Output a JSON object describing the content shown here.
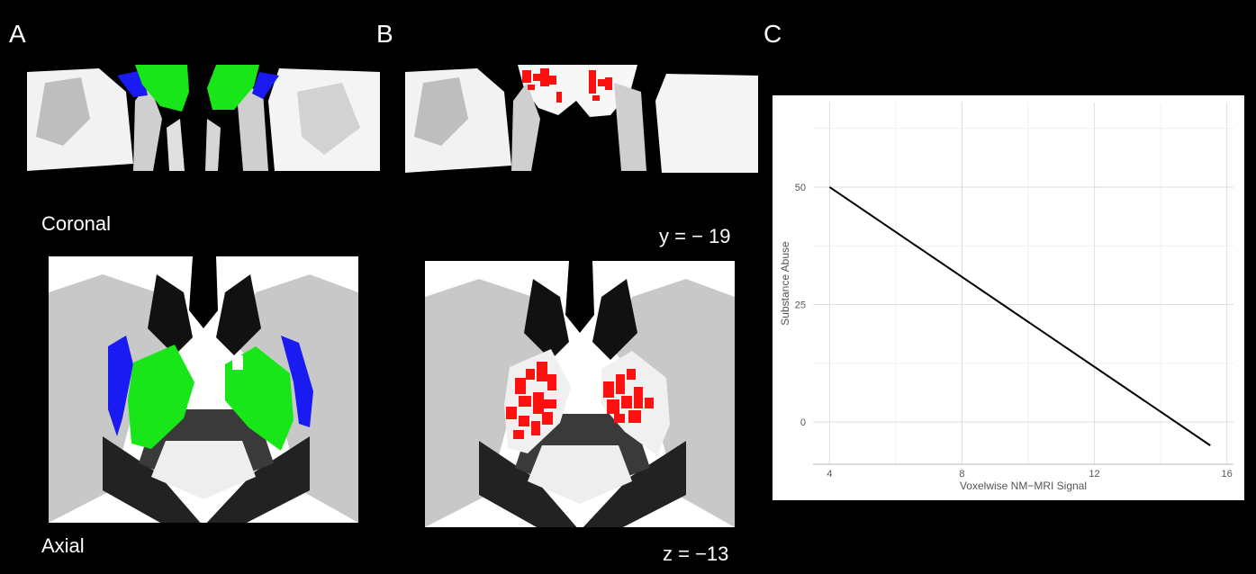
{
  "panels": {
    "a_label": "A",
    "b_label": "B",
    "c_label": "C"
  },
  "captions": {
    "coronal": "Coronal",
    "axial": "Axial",
    "y_coord": "y = − 19",
    "z_coord": "z = −13"
  },
  "colors": {
    "background": "#000000",
    "roi_green": "#19e619",
    "roi_blue": "#1a1af2",
    "voxel_red": "#ff1010",
    "line": "#000000"
  },
  "chart_data": {
    "type": "line",
    "title": "",
    "xlabel": "Voxelwise NM−MRI Signal",
    "ylabel": "Substance Abuse",
    "x": [
      4,
      15.5
    ],
    "series": [
      {
        "values": [
          50,
          -5
        ]
      }
    ],
    "xlim": [
      3.5,
      16.2
    ],
    "ylim": [
      -9,
      68
    ],
    "xticks": [
      4,
      8,
      12,
      16
    ],
    "xtick_labels": [
      "4",
      "8",
      "12",
      "16"
    ],
    "yticks": [
      0,
      25,
      50
    ],
    "ytick_labels": [
      "0",
      "25",
      "50"
    ],
    "grid": true
  }
}
